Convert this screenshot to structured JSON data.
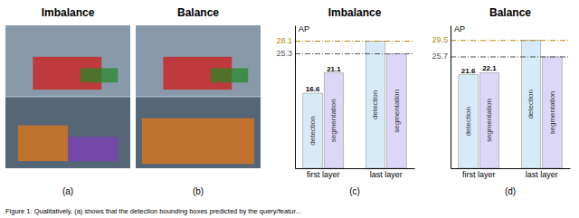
{
  "chart_data": [
    {
      "type": "image",
      "title": "Imbalance",
      "annotations": [
        "(a)"
      ]
    },
    {
      "type": "image",
      "title": "Balance",
      "annotations": [
        "(b)"
      ]
    },
    {
      "type": "bar",
      "title": "Imbalance",
      "categories": [
        "first layer",
        "last layer"
      ],
      "series": [
        {
          "name": "detection",
          "color": "#d6eaf8",
          "values": [
            16.6,
            28.1
          ],
          "value_labels": [
            "16.6",
            null
          ]
        },
        {
          "name": "segmentation",
          "color": "#dcd6f7",
          "values": [
            21.1,
            25.3
          ],
          "value_labels": [
            "21.1",
            null
          ]
        }
      ],
      "ylabel": "AP",
      "ylim": [
        0,
        31.6
      ],
      "yticks": [],
      "tick_labels": "x",
      "data_labels": true,
      "hlines": [
        {
          "value": 28.1,
          "color": "#b8860b",
          "line_style": "dashdot"
        },
        {
          "value": 25.3,
          "color": "#555555",
          "line_style": "dashdot"
        }
      ],
      "annotations": [
        "(c)"
      ]
    },
    {
      "type": "bar",
      "title": "Balance",
      "categories": [
        "first layer",
        "last layer"
      ],
      "series": [
        {
          "name": "detection",
          "color": "#d6eaf8",
          "values": [
            21.6,
            29.5
          ],
          "value_labels": [
            "21.6",
            null
          ]
        },
        {
          "name": "segmentation",
          "color": "#dcd6f7",
          "values": [
            22.1,
            25.7
          ],
          "value_labels": [
            "22.1",
            null
          ]
        }
      ],
      "ylabel": "AP",
      "ylim": [
        0,
        33
      ],
      "yticks": [],
      "tick_labels": "x",
      "data_labels": true,
      "hlines": [
        {
          "value": 29.5,
          "color": "#b8860b",
          "line_style": "dashdot"
        },
        {
          "value": 25.7,
          "color": "#555555",
          "line_style": "dashdot"
        }
      ],
      "annotations": [
        "(d)"
      ]
    }
  ],
  "caption": "Figure 1: Qualitatively, (a) shows that the detection bounding boxes predicted by the query/featur..."
}
